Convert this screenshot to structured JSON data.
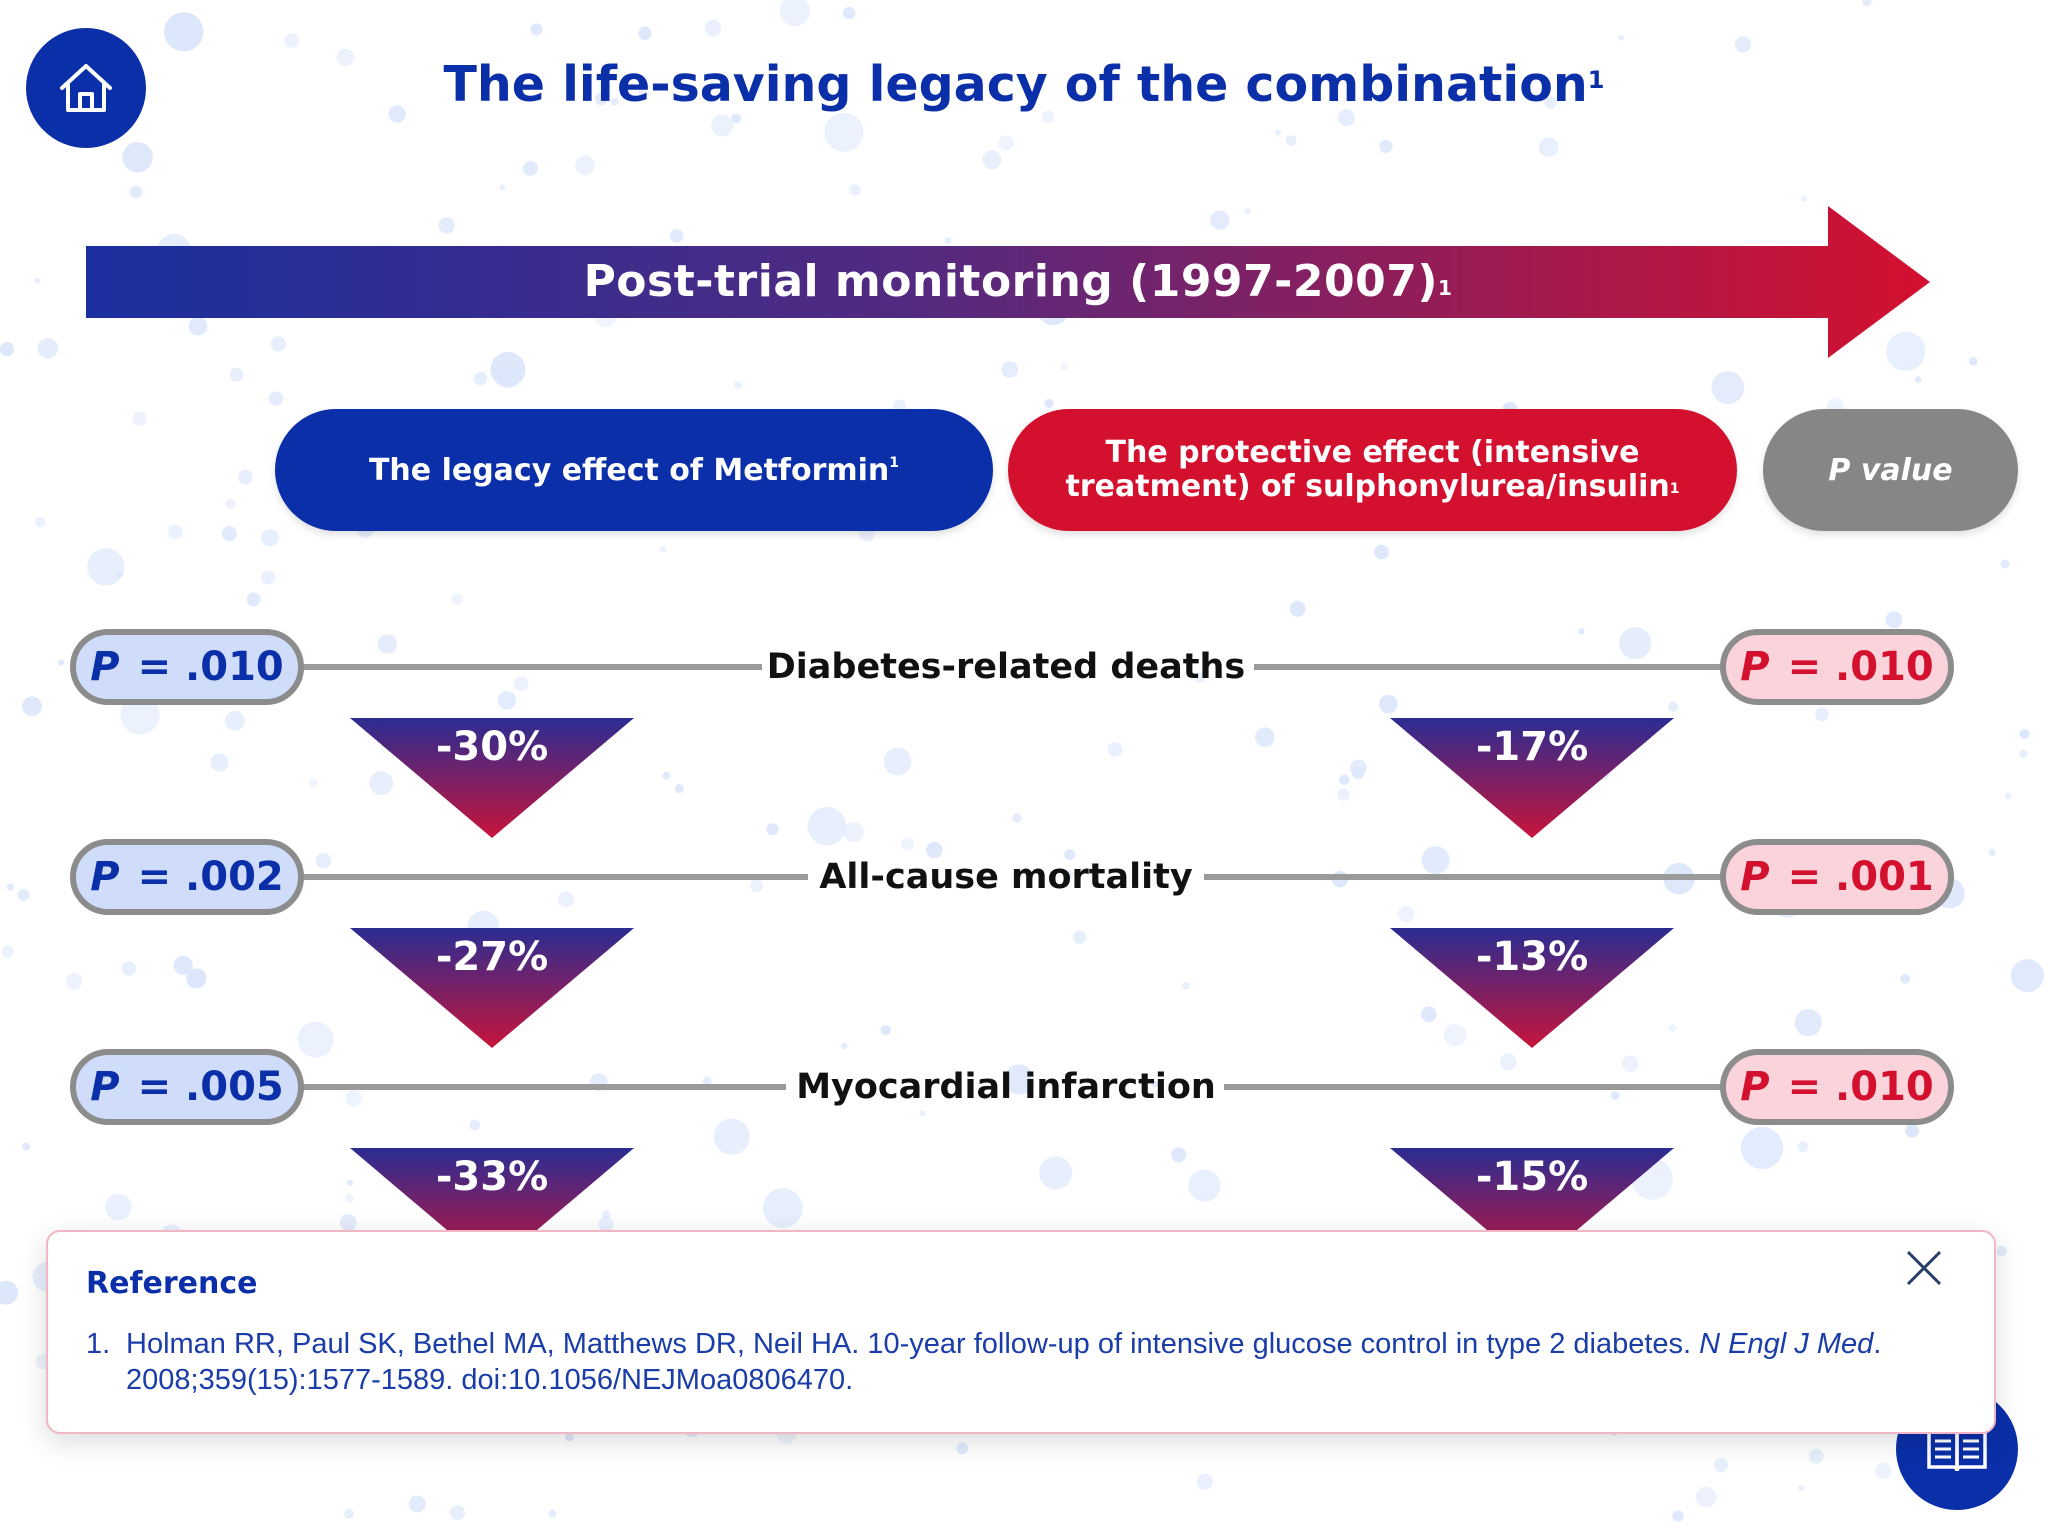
{
  "header": {
    "title": "The life-saving legacy of the combination",
    "title_ref": "1"
  },
  "banner": {
    "label": "Post-trial monitoring (1997-2007)",
    "ref": "1"
  },
  "columns": {
    "metformin_label": "The legacy effect of Metformin",
    "metformin_ref": "1",
    "sulphonylurea_line1": "The protective effect (intensive",
    "sulphonylurea_line2": "treatment) of sulphonylurea/insulin",
    "sulphonylurea_ref": "1",
    "p_label": "P value"
  },
  "p_prefix": "P",
  "rows": [
    {
      "outcome": "Diabetes-related deaths",
      "p_left": "= .010",
      "p_right": "= .010",
      "reduction_left": "-30%",
      "reduction_right": "-17%"
    },
    {
      "outcome": "All-cause mortality",
      "p_left": "= .002",
      "p_right": "= .001",
      "reduction_left": "-27%",
      "reduction_right": "-13%"
    },
    {
      "outcome": "Myocardial infarction",
      "p_left": "= .005",
      "p_right": "= .010",
      "reduction_left": "-33%",
      "reduction_right": "-15%"
    }
  ],
  "reference": {
    "heading": "Reference",
    "number": "1.",
    "text_a": "Holman RR, Paul SK, Bethel MA, Matthews DR, Neil HA. 10-year follow-up of intensive glucose control in type 2 diabetes. ",
    "journal": "N Engl J Med",
    "text_b": ". 2008;359(15):1577-1589. doi:10.1056/NEJMoa0806470."
  },
  "colors": {
    "brand_blue": "#0a2fa8",
    "brand_red": "#d4102f",
    "neutral_gray": "#868686"
  },
  "icons": {
    "home": "home-icon",
    "close": "close-icon",
    "reference": "book-icon"
  }
}
